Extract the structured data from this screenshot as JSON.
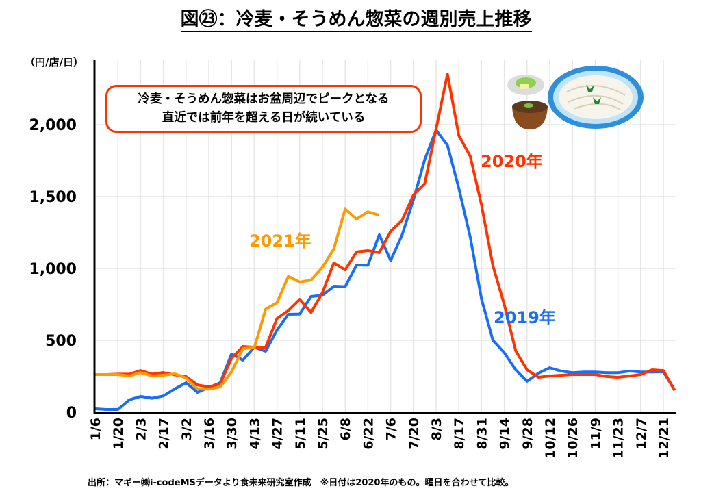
{
  "title": "図㉓：冷麦・そうめん惣菜の週別売上推移",
  "unit_label": "（円/店/日）",
  "callout": {
    "line1": "冷麦・そうめん惣菜はお盆周辺でピークとなる",
    "line2": "直近では前年を超える日が続いている"
  },
  "source_note": "出所：マギー㈱i-codeMSデータより食未来研究室作成　※日付は2020年のもの。曜日を合わせて比較。",
  "illustration": "soumen-noodles-icon",
  "chart_data": {
    "type": "line",
    "title": "図㉓：冷麦・そうめん惣菜の週別売上推移",
    "xlabel": "",
    "ylabel": "（円/店/日）",
    "ylim": [
      0,
      2400
    ],
    "yticks": [
      0,
      500,
      1000,
      1500,
      2000
    ],
    "ytick_labels": [
      "0",
      "500",
      "1,000",
      "1,500",
      "2,000"
    ],
    "grid": true,
    "x_points": 52,
    "x_tick_every": 2,
    "x_tick_labels": [
      "1/6",
      "1/20",
      "2/3",
      "2/17",
      "3/2",
      "3/16",
      "3/30",
      "4/13",
      "4/27",
      "5/11",
      "5/25",
      "6/8",
      "6/22",
      "7/6",
      "7/20",
      "8/3",
      "8/17",
      "8/31",
      "9/14",
      "9/28",
      "10/12",
      "10/26",
      "11/9",
      "11/23",
      "12/7",
      "12/21"
    ],
    "legend": "inline-labels",
    "series": [
      {
        "name": "2019年",
        "color": "#1A6EF5",
        "values": [
          24,
          19,
          19,
          86,
          110,
          97,
          113,
          162,
          205,
          138,
          171,
          205,
          405,
          362,
          452,
          424,
          571,
          681,
          683,
          805,
          813,
          876,
          873,
          1024,
          1022,
          1234,
          1055,
          1231,
          1476,
          1757,
          1962,
          1857,
          1557,
          1220,
          786,
          500,
          414,
          295,
          215,
          271,
          309,
          286,
          275,
          280,
          280,
          275,
          275,
          286,
          280,
          280,
          281,
          152
        ]
      },
      {
        "name": "2020年",
        "color": "#FF3300",
        "values": [
          262,
          262,
          265,
          265,
          290,
          265,
          276,
          260,
          248,
          190,
          176,
          197,
          376,
          457,
          452,
          452,
          652,
          707,
          785,
          694,
          832,
          1038,
          990,
          1115,
          1124,
          1110,
          1258,
          1334,
          1510,
          1590,
          1970,
          2352,
          1924,
          1781,
          1440,
          1019,
          748,
          428,
          295,
          243,
          252,
          257,
          262,
          262,
          262,
          248,
          243,
          252,
          262,
          295,
          290,
          152
        ]
      },
      {
        "name": "2021年",
        "color": "#FF9900",
        "values": [
          262,
          262,
          262,
          252,
          276,
          252,
          257,
          267,
          238,
          162,
          160,
          176,
          281,
          443,
          448,
          716,
          762,
          945,
          905,
          919,
          1008,
          1136,
          1413,
          1343,
          1394,
          1370
        ]
      }
    ]
  }
}
